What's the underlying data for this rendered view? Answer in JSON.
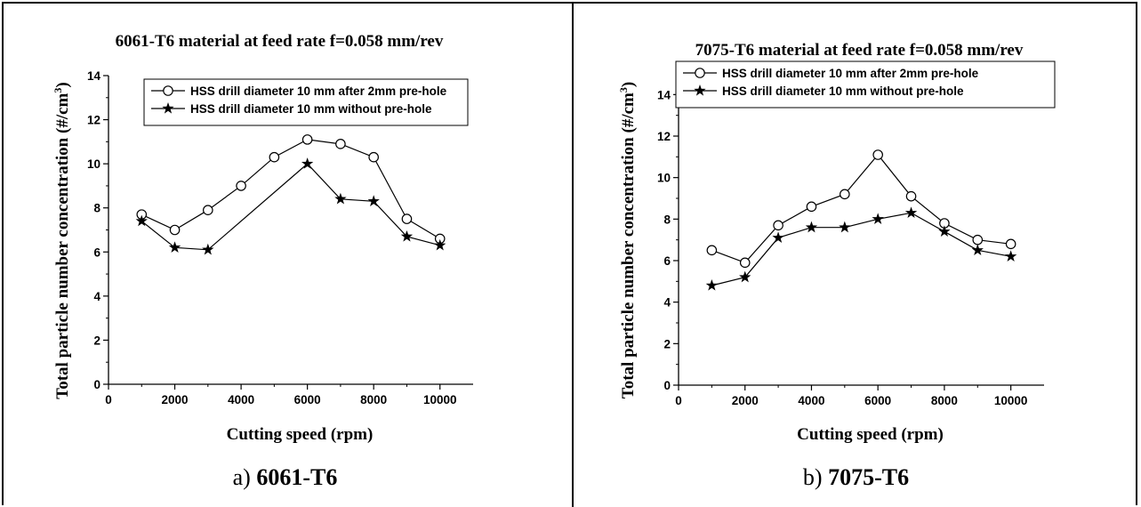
{
  "chart_data": [
    {
      "type": "line",
      "title": "6061-T6 material at feed rate f=0.058 mm/rev",
      "xlabel": "Cutting speed (rpm)",
      "ylabel_main": "Total particle number concentration (#/cm",
      "ylabel_sup": "3",
      "ylabel_close": ")",
      "xlim": [
        0,
        11000
      ],
      "ylim": [
        0,
        14
      ],
      "x_ticks": [
        0,
        2000,
        4000,
        6000,
        8000,
        10000
      ],
      "y_ticks": [
        0,
        2,
        4,
        6,
        8,
        10,
        12,
        14
      ],
      "legend_position": "top-right",
      "x": [
        1000,
        2000,
        3000,
        4000,
        5000,
        6000,
        7000,
        8000,
        9000,
        10000
      ],
      "series": [
        {
          "name": "HSS drill diameter 10 mm after 2mm pre-hole",
          "marker": "circle",
          "values": [
            7.7,
            7.0,
            7.9,
            9.0,
            10.3,
            11.1,
            10.9,
            10.3,
            7.5,
            6.6
          ]
        },
        {
          "name": "HSS drill diameter 10 mm without pre-hole",
          "marker": "star",
          "values": [
            7.4,
            6.2,
            6.1,
            null,
            null,
            10.0,
            8.4,
            8.3,
            6.7,
            6.3
          ]
        }
      ]
    },
    {
      "type": "line",
      "title": "7075-T6 material at feed rate f=0.058 mm/rev",
      "xlabel": "Cutting speed (rpm)",
      "ylabel_main": "Total particle number concentration (#/cm",
      "ylabel_sup": "3",
      "ylabel_close": ")",
      "xlim": [
        0,
        11000
      ],
      "ylim": [
        0,
        15
      ],
      "x_ticks": [
        0,
        2000,
        4000,
        6000,
        8000,
        10000
      ],
      "y_ticks": [
        0,
        2,
        4,
        6,
        8,
        10,
        12,
        14
      ],
      "legend_position": "top",
      "x": [
        1000,
        2000,
        3000,
        4000,
        5000,
        6000,
        7000,
        8000,
        9000,
        10000
      ],
      "series": [
        {
          "name": "HSS drill diameter 10 mm after 2mm pre-hole",
          "marker": "circle",
          "values": [
            6.5,
            5.9,
            7.7,
            8.6,
            9.2,
            11.1,
            9.1,
            7.8,
            7.0,
            6.8
          ]
        },
        {
          "name": "HSS drill diameter 10 mm without pre-hole",
          "marker": "star",
          "values": [
            4.8,
            5.2,
            7.1,
            7.6,
            7.6,
            8.0,
            8.3,
            7.4,
            6.5,
            6.2
          ]
        }
      ]
    }
  ],
  "captions": [
    {
      "prefix": "a) ",
      "label": "6061-T6"
    },
    {
      "prefix": "b) ",
      "label": "7075-T6"
    }
  ]
}
